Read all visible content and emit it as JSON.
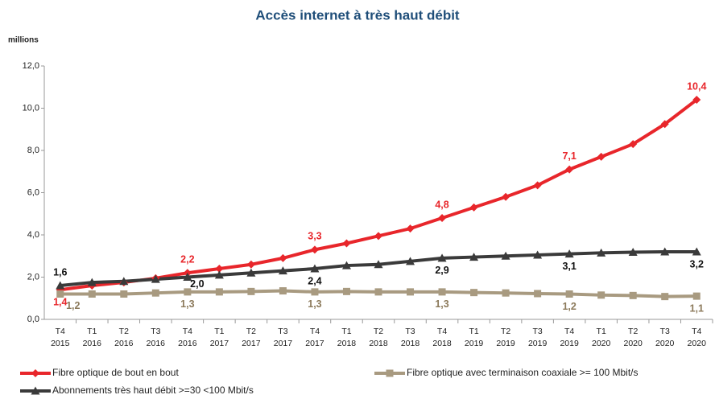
{
  "chart_data": {
    "type": "line",
    "title": "Accès internet à très haut débit",
    "y_label": "millions",
    "categories": [
      "T4 2015",
      "T1 2016",
      "T2 2016",
      "T3 2016",
      "T4 2016",
      "T1 2017",
      "T2 2017",
      "T3 2017",
      "T4 2017",
      "T1 2018",
      "T2 2018",
      "T3 2018",
      "T4 2018",
      "T1 2019",
      "T2 2019",
      "T3 2019",
      "T4 2019",
      "T1 2020",
      "T2 2020",
      "T3 2020",
      "T4 2020"
    ],
    "ylim": [
      0,
      12
    ],
    "yticks": [
      {
        "value": 0,
        "label": "0,0"
      },
      {
        "value": 2,
        "label": "2,0"
      },
      {
        "value": 4,
        "label": "4,0"
      },
      {
        "value": 6,
        "label": "6,0"
      },
      {
        "value": 8,
        "label": "8,0"
      },
      {
        "value": 10,
        "label": "10,0"
      },
      {
        "value": 12,
        "label": "12,0"
      }
    ],
    "series": [
      {
        "name": "Fibre optique de bout en bout",
        "color": "#e8262b",
        "marker": "diamond",
        "values": [
          1.4,
          1.6,
          1.75,
          1.95,
          2.2,
          2.4,
          2.6,
          2.9,
          3.3,
          3.6,
          3.95,
          4.3,
          4.8,
          5.3,
          5.8,
          6.35,
          7.1,
          7.7,
          8.3,
          9.25,
          10.4
        ],
        "value_labels": [
          "1,4",
          null,
          null,
          null,
          "2,2",
          null,
          null,
          null,
          "3,3",
          null,
          null,
          null,
          "4,8",
          null,
          null,
          null,
          "7,1",
          null,
          null,
          null,
          "10,4"
        ]
      },
      {
        "name": "Fibre optique avec terminaison coaxiale >= 100 Mbit/s",
        "color": "#a89a80",
        "marker": "square",
        "values": [
          1.2,
          1.2,
          1.2,
          1.25,
          1.3,
          1.3,
          1.32,
          1.35,
          1.3,
          1.32,
          1.3,
          1.3,
          1.3,
          1.27,
          1.25,
          1.22,
          1.2,
          1.15,
          1.13,
          1.08,
          1.1
        ],
        "value_labels": [
          "1,2",
          null,
          null,
          null,
          "1,3",
          null,
          null,
          null,
          "1,3",
          null,
          null,
          null,
          "1,3",
          null,
          null,
          null,
          "1,2",
          null,
          null,
          null,
          "1,1"
        ]
      },
      {
        "name": "Abonnements très haut débit >=30 <100 Mbit/s",
        "color": "#3a3a3a",
        "marker": "triangle",
        "values": [
          1.6,
          1.75,
          1.8,
          1.9,
          2.0,
          2.1,
          2.2,
          2.3,
          2.4,
          2.55,
          2.6,
          2.75,
          2.9,
          2.95,
          3.0,
          3.05,
          3.1,
          3.15,
          3.18,
          3.2,
          3.2
        ],
        "value_labels": [
          "1,6",
          null,
          null,
          null,
          "2,0",
          null,
          null,
          null,
          "2,4",
          null,
          null,
          null,
          "2,9",
          null,
          null,
          null,
          "3,1",
          null,
          null,
          null,
          "3,2"
        ]
      }
    ]
  }
}
